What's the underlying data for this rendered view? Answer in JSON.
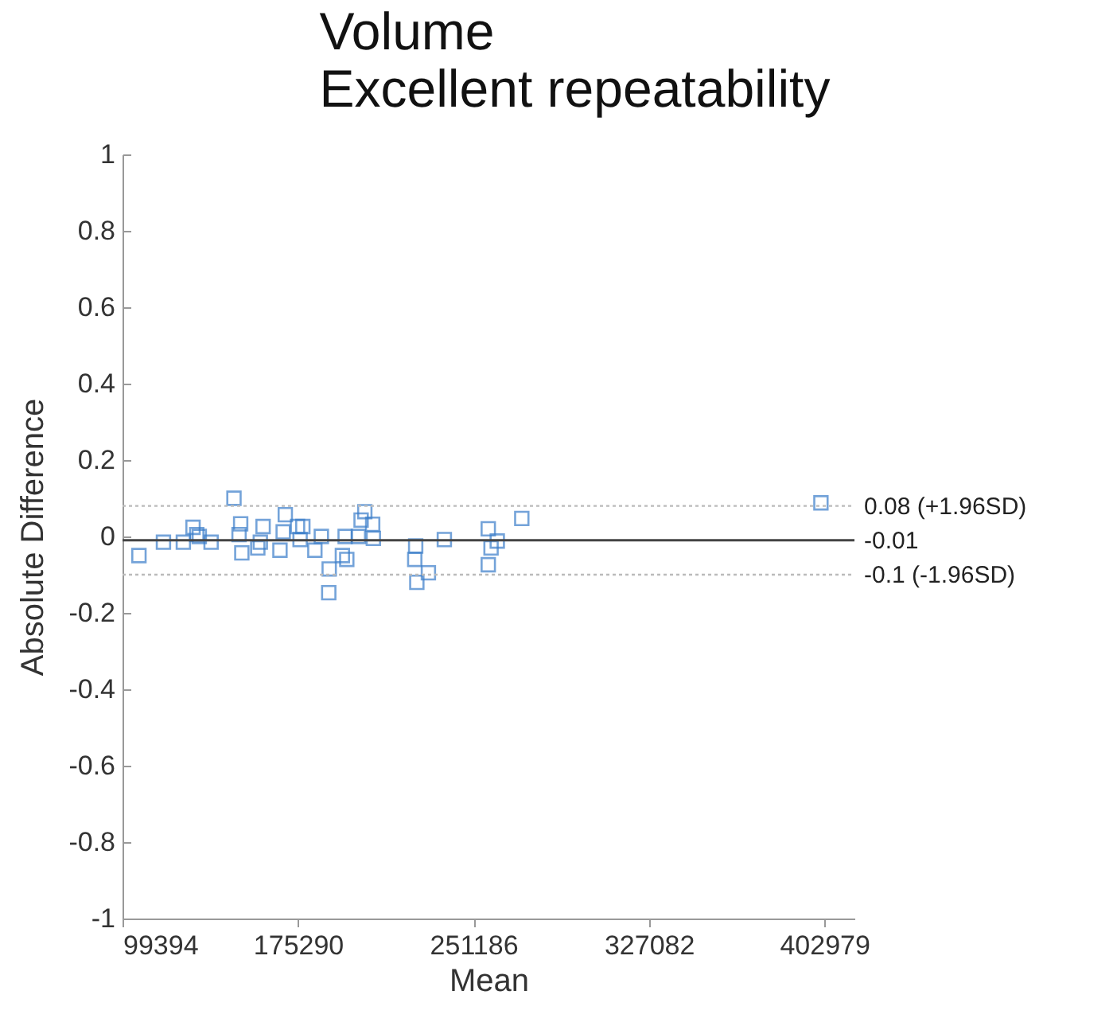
{
  "chart_data": {
    "type": "scatter",
    "title": "Volume",
    "subtitle": "Excellent repeatability",
    "xlabel": "Mean",
    "ylabel": "Absolute Difference",
    "x": [
      106500,
      117100,
      125700,
      129900,
      131500,
      132600,
      137700,
      147600,
      150500,
      149800,
      151000,
      157900,
      160200,
      159000,
      167500,
      169800,
      168900,
      175100,
      177400,
      176200,
      182600,
      185400,
      188800,
      188600,
      194500,
      196400,
      195700,
      201400,
      202600,
      204200,
      207600,
      207900,
      226200,
      225800,
      226700,
      231700,
      238600,
      257600,
      257600,
      258800,
      261500,
      272100,
      401500
    ],
    "series": [
      {
        "color": "#3a7dc9",
        "values": [
          -0.05,
          -0.015,
          -0.015,
          0.024,
          0.005,
          0,
          -0.015,
          0.1,
          0.033,
          0.005,
          -0.043,
          -0.03,
          0.026,
          -0.015,
          -0.036,
          0.057,
          0.012,
          0.026,
          0.026,
          -0.008,
          -0.036,
          0,
          -0.085,
          -0.147,
          -0.05,
          -0.06,
          0,
          0,
          0.043,
          0.065,
          0.032,
          -0.005,
          -0.025,
          -0.06,
          -0.12,
          -0.095,
          -0.008,
          0.02,
          -0.074,
          -0.03,
          -0.012,
          0.047,
          0.088
        ]
      }
    ],
    "marker": "square",
    "xlim": [
      99394,
      416000
    ],
    "xticks": [
      99394,
      175290,
      251186,
      327082,
      402979
    ],
    "ylim": [
      -1,
      1
    ],
    "yticks": [
      -1,
      -0.8,
      -0.6,
      -0.4,
      -0.2,
      0,
      0.2,
      0.4,
      0.6,
      0.8,
      1
    ],
    "grid": false,
    "ref_lines": [
      {
        "axis": "y",
        "value": 0.08,
        "label": "0.08 (+1.96SD)",
        "color": "#bbbbbb",
        "line_style": "dotted"
      },
      {
        "axis": "y",
        "value": -0.01,
        "label": "-0.01",
        "color": "#444444",
        "line_style": "solid"
      },
      {
        "axis": "y",
        "value": -0.1,
        "label": "-0.1 (-1.96SD)",
        "color": "#bbbbbb",
        "line_style": "dotted"
      }
    ]
  }
}
